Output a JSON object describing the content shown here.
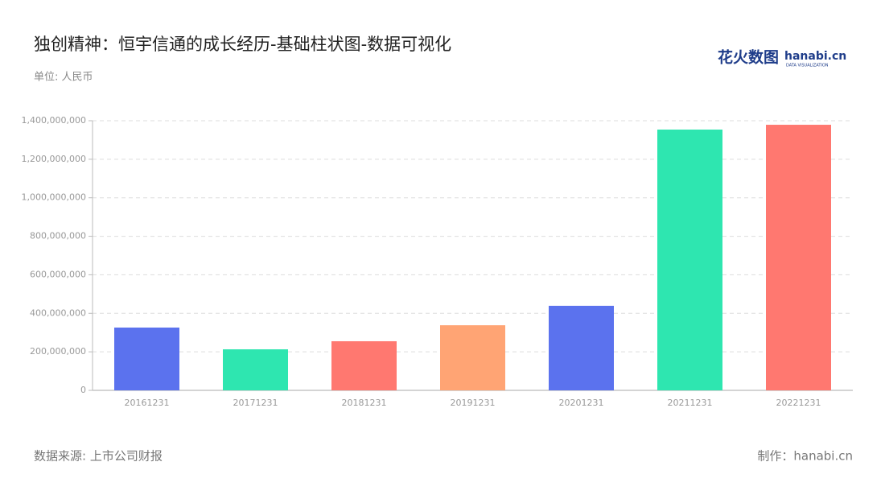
{
  "chart_data": {
    "type": "bar",
    "title": "独创精神：恒宇信通的成长经历-基础柱状图-数据可视化",
    "subtitle": "单位: 人民币",
    "source": "数据来源: 上市公司财报",
    "credit": "制作：hanabi.cn",
    "logo": {
      "brand": "花火数图",
      "site": "hanabi.cn",
      "tagline": "DATA VISUALIZATION"
    },
    "categories": [
      "20161231",
      "20171231",
      "20181231",
      "20191231",
      "20201231",
      "20211231",
      "20221231"
    ],
    "values": [
      326000000,
      213000000,
      255000000,
      338000000,
      439000000,
      1354000000,
      1379000000
    ],
    "colors": [
      "#5b72ee",
      "#2ee6b0",
      "#ff7870",
      "#ffa474",
      "#5b72ee",
      "#2ee6b0",
      "#ff7870"
    ],
    "ylim": [
      0,
      1400000000
    ],
    "yticks": [
      0,
      {
        "value": 200000000,
        "label": "200,000,000"
      },
      {
        "value": 400000000,
        "label": "400,000,000"
      },
      {
        "value": 600000000,
        "label": "600,000,000"
      },
      {
        "value": 800000000,
        "label": "800,000,000"
      },
      {
        "value": 1000000000,
        "label": "1,000,000,000"
      },
      {
        "value": 1200000000,
        "label": "1,200,000,000"
      },
      {
        "value": 1400000000,
        "label": "1,400,000,000"
      }
    ],
    "grid": true
  }
}
